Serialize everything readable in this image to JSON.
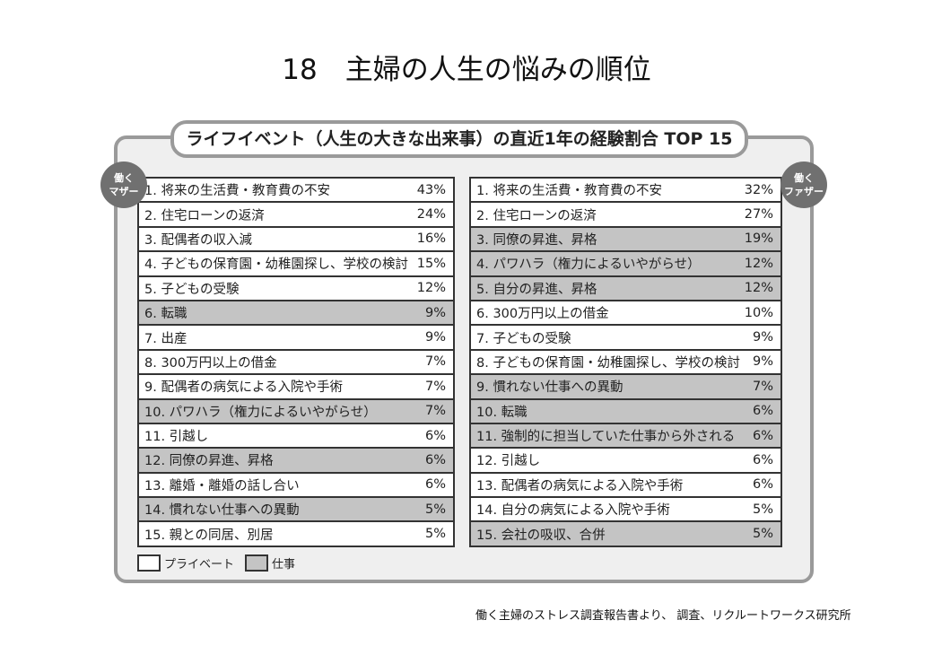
{
  "title": "18　主婦の人生の悩みの順位",
  "panel_title": "ライフイベント（人生の大きな出来事）の直近1年の経験割合 TOP 15",
  "colors": {
    "private": "#ffffff",
    "work": "#c4c4c4",
    "frame": "#9a9a9a",
    "badge": "#707070"
  },
  "mother": {
    "badge": [
      "働く",
      "マザー"
    ],
    "rows": [
      {
        "label": "1. 将来の生活費・教育費の不安",
        "value": "43%",
        "category": "private"
      },
      {
        "label": "2. 住宅ローンの返済",
        "value": "24%",
        "category": "private"
      },
      {
        "label": "3. 配偶者の収入減",
        "value": "16%",
        "category": "private"
      },
      {
        "label": "4. 子どもの保育園・幼稚園探し、学校の検討",
        "value": "15%",
        "category": "private"
      },
      {
        "label": "5. 子どもの受験",
        "value": "12%",
        "category": "private"
      },
      {
        "label": "6. 転職",
        "value": "9%",
        "category": "work"
      },
      {
        "label": "7. 出産",
        "value": "9%",
        "category": "private"
      },
      {
        "label": "8. 300万円以上の借金",
        "value": "7%",
        "category": "private"
      },
      {
        "label": "9. 配偶者の病気による入院や手術",
        "value": "7%",
        "category": "private"
      },
      {
        "label": "10. パワハラ（権力によるいやがらせ）",
        "value": "7%",
        "category": "work"
      },
      {
        "label": "11. 引越し",
        "value": "6%",
        "category": "private"
      },
      {
        "label": "12. 同僚の昇進、昇格",
        "value": "6%",
        "category": "work"
      },
      {
        "label": "13. 離婚・離婚の話し合い",
        "value": "6%",
        "category": "private"
      },
      {
        "label": "14. 慣れない仕事への異動",
        "value": "5%",
        "category": "work"
      },
      {
        "label": "15. 親との同居、別居",
        "value": "5%",
        "category": "private"
      }
    ]
  },
  "father": {
    "badge": [
      "働く",
      "ファザー"
    ],
    "rows": [
      {
        "label": "1. 将来の生活費・教育費の不安",
        "value": "32%",
        "category": "private"
      },
      {
        "label": "2. 住宅ローンの返済",
        "value": "27%",
        "category": "private"
      },
      {
        "label": "3. 同僚の昇進、昇格",
        "value": "19%",
        "category": "work"
      },
      {
        "label": "4. パワハラ（権力によるいやがらせ）",
        "value": "12%",
        "category": "work"
      },
      {
        "label": "5. 自分の昇進、昇格",
        "value": "12%",
        "category": "work"
      },
      {
        "label": "6. 300万円以上の借金",
        "value": "10%",
        "category": "private"
      },
      {
        "label": "7. 子どもの受験",
        "value": "9%",
        "category": "private"
      },
      {
        "label": "8. 子どもの保育園・幼稚園探し、学校の検討",
        "value": "9%",
        "category": "private"
      },
      {
        "label": "9. 慣れない仕事への異動",
        "value": "7%",
        "category": "work"
      },
      {
        "label": "10. 転職",
        "value": "6%",
        "category": "work"
      },
      {
        "label": "11. 強制的に担当していた仕事から外される",
        "value": "6%",
        "category": "work"
      },
      {
        "label": "12. 引越し",
        "value": "6%",
        "category": "private"
      },
      {
        "label": "13. 配偶者の病気による入院や手術",
        "value": "6%",
        "category": "private"
      },
      {
        "label": "14. 自分の病気による入院や手術",
        "value": "5%",
        "category": "private"
      },
      {
        "label": "15. 会社の吸収、合併",
        "value": "5%",
        "category": "work"
      }
    ]
  },
  "legend": {
    "private": "プライベート",
    "work": "仕事"
  },
  "source": "働く主婦のストレス調査報告書より、 調査、リクルートワークス研究所"
}
